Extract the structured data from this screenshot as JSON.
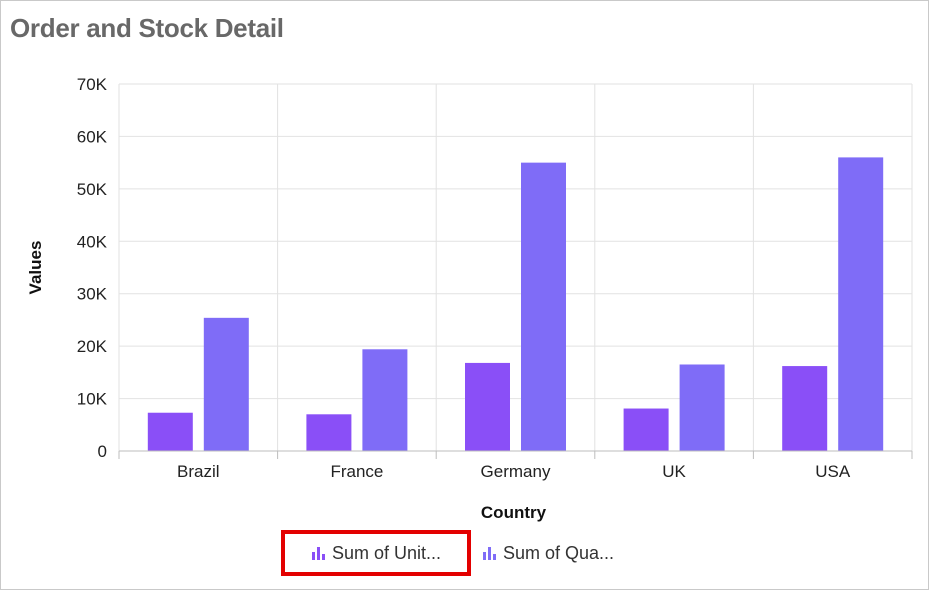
{
  "title": "Order and Stock Detail",
  "chart_data": {
    "type": "bar",
    "title": "Order and Stock Detail",
    "xlabel": "Country",
    "ylabel": "Values",
    "categories": [
      "Brazil",
      "France",
      "Germany",
      "UK",
      "USA"
    ],
    "series": [
      {
        "name": "Sum of Unit...",
        "color": "#8a4ff7",
        "values": [
          7300,
          7000,
          16800,
          8100,
          16200
        ]
      },
      {
        "name": "Sum of Qua...",
        "color": "#7f6cf7",
        "values": [
          25400,
          19400,
          55000,
          16500,
          56000
        ]
      }
    ],
    "ylim": [
      0,
      70000
    ],
    "yticks": [
      "0",
      "10K",
      "20K",
      "30K",
      "40K",
      "50K",
      "60K",
      "70K"
    ],
    "grid": true,
    "legend_position": "bottom"
  },
  "legend": {
    "items": [
      {
        "label": "Sum of Unit...",
        "color": "#8a4ff7",
        "icon": "bar-chart-icon"
      },
      {
        "label": "Sum of Qua...",
        "color": "#7f6cf7",
        "icon": "bar-chart-icon"
      }
    ]
  }
}
